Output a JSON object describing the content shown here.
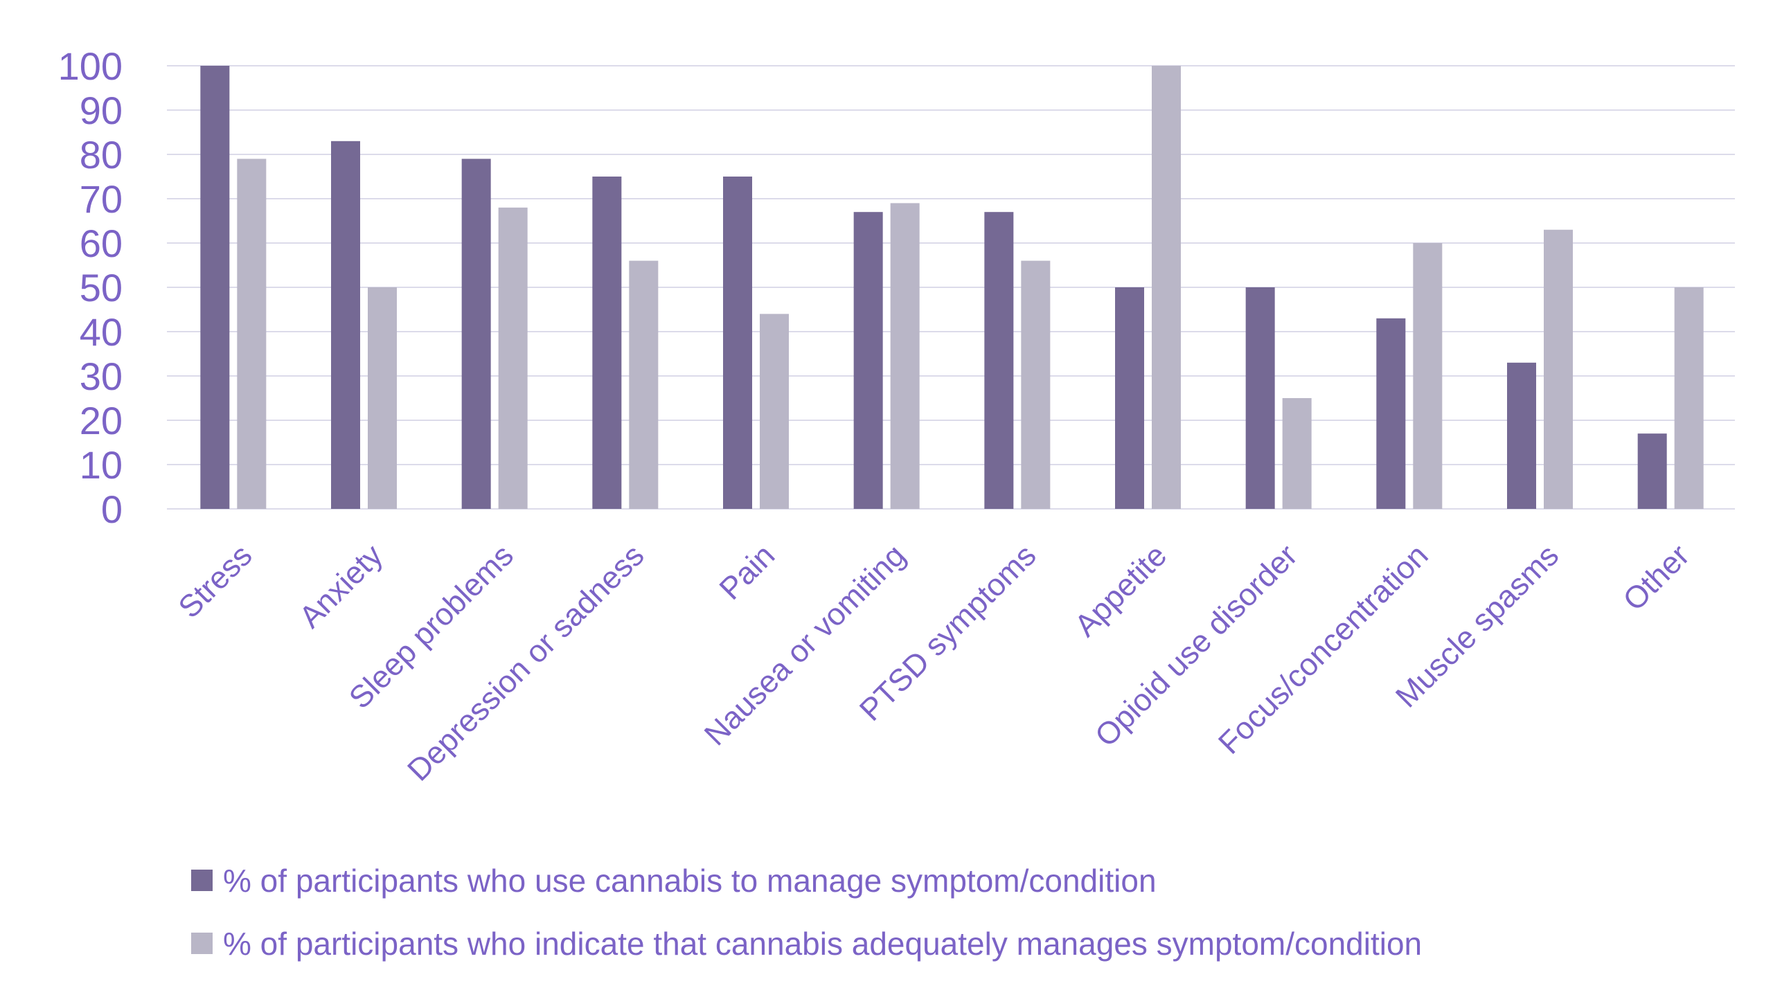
{
  "chart_data": {
    "type": "bar",
    "title": "",
    "xlabel": "",
    "ylabel": "",
    "ylim": [
      0,
      100
    ],
    "yticks": [
      0,
      10,
      20,
      30,
      40,
      50,
      60,
      70,
      80,
      90,
      100
    ],
    "grid": true,
    "legend_position": "bottom",
    "categories": [
      "Stress",
      "Anxiety",
      "Sleep problems",
      "Depression or sadness",
      "Pain",
      "Nausea or vomiting",
      "PTSD symptoms",
      "Appetite",
      "Opioid use disorder",
      "Focus/concentration",
      "Muscle spasms",
      "Other"
    ],
    "series": [
      {
        "name": "% of participants who use cannabis to manage symptom/condition",
        "color": "#756994",
        "values": [
          100,
          83,
          79,
          75,
          75,
          67,
          67,
          50,
          50,
          43,
          33,
          17
        ]
      },
      {
        "name": "% of participants who indicate that cannabis adequately manages symptom/condition",
        "color": "#b9b6c7",
        "values": [
          79,
          50,
          68,
          56,
          44,
          69,
          56,
          100,
          25,
          60,
          63,
          50
        ]
      }
    ],
    "colors": {
      "label_text": "#7b63c6",
      "gridline": "#dcdbea"
    }
  }
}
